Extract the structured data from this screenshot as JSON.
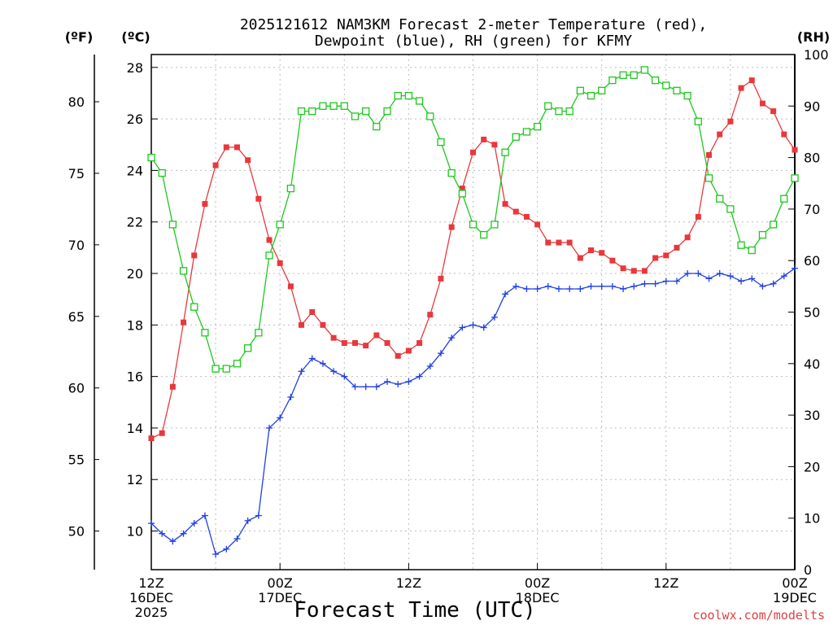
{
  "title_line1": "2025121612 NAM3KM Forecast 2-meter Temperature (red),",
  "title_line2": "Dewpoint (blue), RH (green) for KFMY",
  "unit_f": "(ºF)",
  "unit_c": "(ºC)",
  "unit_rh": "(RH)",
  "xlabel": "Forecast Time (UTC)",
  "credit": "coolwx.com/modelts",
  "x_ticks": [
    {
      "hour": 0,
      "line1": "12Z",
      "line2": "16DEC",
      "line3": "2025"
    },
    {
      "hour": 12,
      "line1": "00Z",
      "line2": "17DEC",
      "line3": ""
    },
    {
      "hour": 24,
      "line1": "12Z",
      "line2": "",
      "line3": ""
    },
    {
      "hour": 36,
      "line1": "00Z",
      "line2": "18DEC",
      "line3": ""
    },
    {
      "hour": 48,
      "line1": "12Z",
      "line2": "",
      "line3": ""
    },
    {
      "hour": 60,
      "line1": "00Z",
      "line2": "19DEC",
      "line3": ""
    }
  ],
  "colors": {
    "temp": "#e8383c",
    "dew": "#2040e0",
    "rh": "#1ec81e",
    "credit": "#e04040"
  },
  "chart_data": {
    "type": "line",
    "title": "2025121612 NAM3KM Forecast 2-meter Temperature (red), Dewpoint (blue), RH (green) for KFMY",
    "xlabel": "Forecast Time (UTC)",
    "x_unit": "forecast hour",
    "xlim": [
      0,
      60
    ],
    "y_left_c": {
      "label": "(ºC)",
      "lim": [
        8.5,
        28.5
      ],
      "ticks": [
        10,
        12,
        14,
        16,
        18,
        20,
        22,
        24,
        26,
        28
      ]
    },
    "y_left_f": {
      "label": "(ºF)",
      "lim": [
        47.3,
        83.3
      ],
      "ticks": [
        50,
        55,
        60,
        65,
        70,
        75,
        80
      ]
    },
    "y_right": {
      "label": "(RH)",
      "lim": [
        0,
        100
      ],
      "ticks": [
        0,
        10,
        20,
        30,
        40,
        50,
        60,
        70,
        80,
        90,
        100
      ]
    },
    "x": [
      0,
      1,
      2,
      3,
      4,
      5,
      6,
      7,
      8,
      9,
      10,
      11,
      12,
      13,
      14,
      15,
      16,
      17,
      18,
      19,
      20,
      21,
      22,
      23,
      24,
      25,
      26,
      27,
      28,
      29,
      30,
      31,
      32,
      33,
      34,
      35,
      36,
      37,
      38,
      39,
      40,
      41,
      42,
      43,
      44,
      45,
      46,
      47,
      48,
      49,
      50,
      51,
      52,
      53,
      54,
      55,
      56,
      57,
      58,
      59,
      60
    ],
    "series": [
      {
        "name": "Temperature (°C)",
        "axis": "left",
        "color": "red",
        "values": [
          13.6,
          13.8,
          15.6,
          18.1,
          20.7,
          22.7,
          24.2,
          24.9,
          24.9,
          24.4,
          22.9,
          21.3,
          20.4,
          19.5,
          18.0,
          18.5,
          18.0,
          17.5,
          17.3,
          17.3,
          17.2,
          17.6,
          17.3,
          16.8,
          17.0,
          17.3,
          18.4,
          19.8,
          21.8,
          23.3,
          24.7,
          25.2,
          25.0,
          22.7,
          22.4,
          22.2,
          21.9,
          21.2,
          21.2,
          21.2,
          20.6,
          20.9,
          20.8,
          20.5,
          20.2,
          20.1,
          20.1,
          20.6,
          20.7,
          21.0,
          21.4,
          22.2,
          24.6,
          25.4,
          25.9,
          27.2,
          27.5,
          26.6,
          26.3,
          25.4,
          24.8
        ]
      },
      {
        "name": "Dewpoint (°C)",
        "axis": "left",
        "color": "blue",
        "values": [
          10.3,
          9.9,
          9.6,
          9.9,
          10.3,
          10.6,
          9.1,
          9.3,
          9.7,
          10.4,
          10.6,
          14.0,
          14.4,
          15.2,
          16.2,
          16.7,
          16.5,
          16.2,
          16.0,
          15.6,
          15.6,
          15.6,
          15.8,
          15.7,
          15.8,
          16.0,
          16.4,
          16.9,
          17.5,
          17.9,
          18.0,
          17.9,
          18.3,
          19.2,
          19.5,
          19.4,
          19.4,
          19.5,
          19.4,
          19.4,
          19.4,
          19.5,
          19.5,
          19.5,
          19.4,
          19.5,
          19.6,
          19.6,
          19.7,
          19.7,
          20.0,
          20.0,
          19.8,
          20.0,
          19.9,
          19.7,
          19.8,
          19.5,
          19.6,
          19.9,
          20.2
        ]
      },
      {
        "name": "Relative Humidity (%)",
        "axis": "right",
        "color": "green",
        "values": [
          80,
          77,
          67,
          58,
          51,
          46,
          39,
          39,
          40,
          43,
          46,
          61,
          67,
          74,
          89,
          89,
          90,
          90,
          90,
          88,
          89,
          86,
          89,
          92,
          92,
          91,
          88,
          83,
          77,
          73,
          67,
          65,
          67,
          81,
          84,
          85,
          86,
          90,
          89,
          89,
          93,
          92,
          93,
          95,
          96,
          96,
          97,
          95,
          94,
          93,
          92,
          87,
          76,
          72,
          70,
          63,
          62,
          65,
          67,
          72,
          76
        ]
      }
    ]
  }
}
